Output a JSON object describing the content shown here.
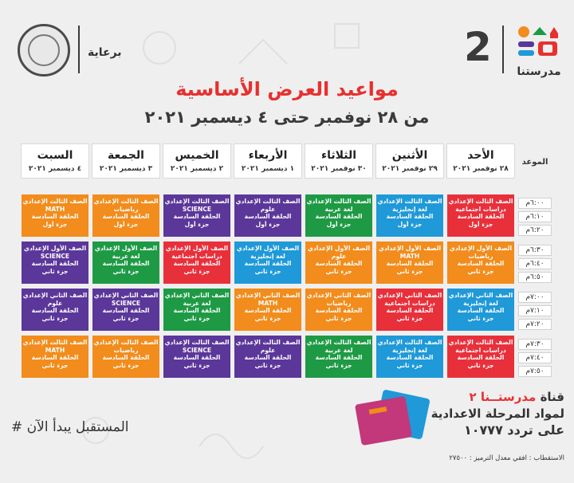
{
  "header": {
    "sponsor_label": "برعاية",
    "channel_number": "2",
    "channel_name": "مدرستنا",
    "brand_colors": [
      "#f28c1c",
      "#e8302f",
      "#1f99d8",
      "#5b379a",
      "#1e9a45"
    ]
  },
  "title": "مواعيد العرض الأساسية",
  "subtitle": "من ٢٨ نوفمبر حتى ٤ ديسمبر ٢٠٢١",
  "table": {
    "time_header": "الموعد",
    "days": [
      {
        "name": "الأحد",
        "date": "٢٨ نوفمبر ٢٠٢١"
      },
      {
        "name": "الأثنين",
        "date": "٢٩ نوفمبر ٢٠٢١"
      },
      {
        "name": "الثلاثاء",
        "date": "٣٠ نوفمبر ٢٠٢١"
      },
      {
        "name": "الأربعاء",
        "date": "١ ديسمبر ٢٠٢١"
      },
      {
        "name": "الخميس",
        "date": "٢ ديسمبر ٢٠٢١"
      },
      {
        "name": "الجمعة",
        "date": "٣ ديسمبر ٢٠٢١"
      },
      {
        "name": "السبت",
        "date": "٤ ديسمبر ٢٠٢١"
      }
    ],
    "times": [
      "٦:٠٠م",
      "٦:١٠م",
      "٦:٢٠م",
      "٦:٣٠م",
      "٦:٤٠م",
      "٦:٥٠م",
      "٧:٠٠م",
      "٧:١٠م",
      "٧:٢٠م",
      "٧:٣٠م",
      "٧:٤٠م",
      "٧:٥٠م"
    ],
    "rows": [
      [
        {
          "color": "red",
          "lines": [
            "الصف الثالث الإعدادي",
            "دراسات اجتماعية",
            "الحلقة السادسة",
            "جزء أول"
          ]
        },
        {
          "color": "blue",
          "lines": [
            "الصف الثالث الإعدادي",
            "لغة إنجليزية",
            "الحلقة السادسة",
            "جزء أول"
          ]
        },
        {
          "color": "green",
          "lines": [
            "الصف الثالث الإعدادي",
            "لغة عربية",
            "الحلقة السادسة",
            "جزء أول"
          ]
        },
        {
          "color": "purple",
          "lines": [
            "الصف الثالث الإعدادي",
            "علوم",
            "الحلقة السادسة",
            "جزء أول"
          ]
        },
        {
          "color": "purple",
          "lines": [
            "الصف الثالث الإعدادي",
            "SCIENCE",
            "الحلقة السادسة",
            "جزء أول"
          ]
        },
        {
          "color": "orange",
          "lines": [
            "الصف الثالث الإعدادي",
            "رياضيات",
            "الحلقة السادسة",
            "جزء أول"
          ]
        },
        {
          "color": "orange",
          "lines": [
            "الصف الثالث الإعدادي",
            "MATH",
            "الحلقة السادسة",
            "جزء أول"
          ]
        }
      ],
      [
        {
          "color": "orange",
          "lines": [
            "الصف الأول الإعدادي",
            "رياضيات",
            "الحلقة السادسة",
            "جزء ثاني"
          ]
        },
        {
          "color": "orange",
          "lines": [
            "الصف الأول الإعدادي",
            "MATH",
            "الحلقة السادسة",
            "جزء ثاني"
          ]
        },
        {
          "color": "orange",
          "lines": [
            "الصف الأول الإعدادي",
            "علوم",
            "الحلقة السادسة",
            "جزء ثاني"
          ]
        },
        {
          "color": "blue",
          "lines": [
            "الصف الأول الإعدادي",
            "لغة إنجليزية",
            "الحلقة السادسة",
            "جزء ثاني"
          ]
        },
        {
          "color": "red",
          "lines": [
            "الصف الأول الإعدادي",
            "دراسات اجتماعية",
            "الحلقة السادسة",
            "جزء ثاني"
          ]
        },
        {
          "color": "green",
          "lines": [
            "الصف الأول الإعدادي",
            "لغة عربية",
            "الحلقة السادسة",
            "جزء ثاني"
          ]
        },
        {
          "color": "purple",
          "lines": [
            "الصف الأول الإعدادي",
            "SCIENCE",
            "الحلقة السادسة",
            "جزء ثاني"
          ]
        }
      ],
      [
        {
          "color": "blue",
          "lines": [
            "الصف الثاني الإعدادي",
            "لغة إنجليزية",
            "الحلقة السادسة",
            "جزء ثاني"
          ]
        },
        {
          "color": "red",
          "lines": [
            "الصف الثاني الإعدادي",
            "دراسات اجتماعية",
            "الحلقة السادسة",
            "جزء ثاني"
          ]
        },
        {
          "color": "orange",
          "lines": [
            "الصف الثاني الإعدادي",
            "رياضيات",
            "الحلقة السادسة",
            "جزء ثاني"
          ]
        },
        {
          "color": "orange",
          "lines": [
            "الصف الثاني الإعدادي",
            "MATH",
            "الحلقة السادسة",
            "جزء ثاني"
          ]
        },
        {
          "color": "green",
          "lines": [
            "الصف الثاني الإعدادي",
            "لغة عربية",
            "الحلقة السادسة",
            "جزء ثاني"
          ]
        },
        {
          "color": "purple",
          "lines": [
            "الصف الثاني الإعدادي",
            "SCIENCE",
            "الحلقة السادسة",
            "جزء ثاني"
          ]
        },
        {
          "color": "purple",
          "lines": [
            "الصف الثاني الإعدادي",
            "علوم",
            "الحلقة السادسة",
            "جزء ثاني"
          ]
        }
      ],
      [
        {
          "color": "red",
          "lines": [
            "الصف الثالث الإعدادي",
            "دراسات اجتماعية",
            "الحلقة السادسة",
            "جزء ثاني"
          ]
        },
        {
          "color": "blue",
          "lines": [
            "الصف الثالث الإعدادي",
            "لغة إنجليزية",
            "الحلقة السادسة",
            "جزء ثاني"
          ]
        },
        {
          "color": "green",
          "lines": [
            "الصف الثالث الإعدادي",
            "لغة عربية",
            "الحلقة السادسة",
            "جزء ثاني"
          ]
        },
        {
          "color": "purple",
          "lines": [
            "الصف الثالث الإعدادي",
            "علوم",
            "الحلقة السادسة",
            "جزء ثاني"
          ]
        },
        {
          "color": "purple",
          "lines": [
            "الصف الثالث الإعدادي",
            "SCIENCE",
            "الحلقة السادسة",
            "جزء ثاني"
          ]
        },
        {
          "color": "orange",
          "lines": [
            "الصف الثالث الإعدادي",
            "رياضيات",
            "الحلقة السادسة",
            "جزء ثاني"
          ]
        },
        {
          "color": "orange",
          "lines": [
            "الصف الثالث الإعدادي",
            "MATH",
            "الحلقة السادسة",
            "جزء ثاني"
          ]
        }
      ]
    ]
  },
  "footer": {
    "hashtag": "# المستقبل يبدأ الآن",
    "channel_label_prefix": "قناة",
    "channel_label_name": "مدرستــنا ٢",
    "line2": "لمواد المرحلة الاعدادية",
    "line3": "على تردد ١٠٧٧٧",
    "reception_note": "الاستقطاب : افقي معدل الترميز : ٢٧٥٠٠"
  }
}
